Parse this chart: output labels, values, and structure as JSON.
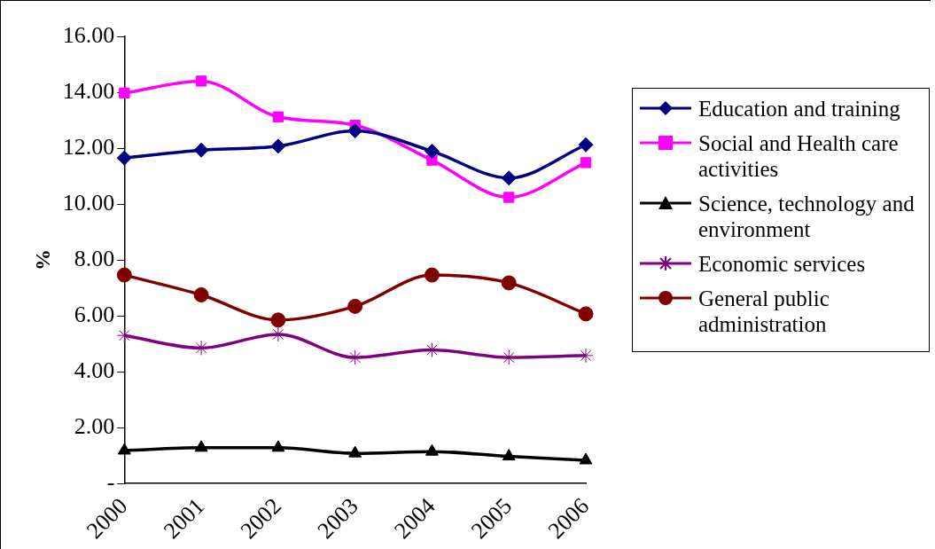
{
  "chart_data": {
    "type": "line",
    "ylabel": "%",
    "categories": [
      "2000",
      "2001",
      "2002",
      "2003",
      "2004",
      "2005",
      "2006"
    ],
    "ylim": [
      0,
      16
    ],
    "yticks": [
      {
        "value": 0,
        "label": "-"
      },
      {
        "value": 2,
        "label": "2.00"
      },
      {
        "value": 4,
        "label": "4.00"
      },
      {
        "value": 6,
        "label": "6.00"
      },
      {
        "value": 8,
        "label": "8.00"
      },
      {
        "value": 10,
        "label": "10.00"
      },
      {
        "value": 12,
        "label": "12.00"
      },
      {
        "value": 14,
        "label": "14.00"
      },
      {
        "value": 16,
        "label": "16.00"
      }
    ],
    "grid": false,
    "legend": "right",
    "series": [
      {
        "name": "Education and training",
        "color": "#000080",
        "marker": "diamond",
        "values": [
          11.65,
          11.93,
          12.07,
          12.62,
          11.89,
          10.93,
          12.12
        ]
      },
      {
        "name": "Social and Health care activities",
        "color": "#ff00ff",
        "marker": "square",
        "values": [
          13.97,
          14.4,
          13.12,
          12.82,
          11.57,
          10.24,
          11.48
        ]
      },
      {
        "name": "Science, technology and environment",
        "color": "#000000",
        "marker": "triangle",
        "values": [
          1.18,
          1.28,
          1.28,
          1.08,
          1.14,
          0.97,
          0.83
        ]
      },
      {
        "name": "Economic services",
        "color": "#800080",
        "marker": "cross",
        "values": [
          5.3,
          4.85,
          5.34,
          4.51,
          4.78,
          4.51,
          4.58
        ]
      },
      {
        "name": "General public administration",
        "color": "#800000",
        "marker": "circle",
        "values": [
          7.46,
          6.75,
          5.85,
          6.34,
          7.46,
          7.18,
          6.07
        ]
      }
    ]
  }
}
